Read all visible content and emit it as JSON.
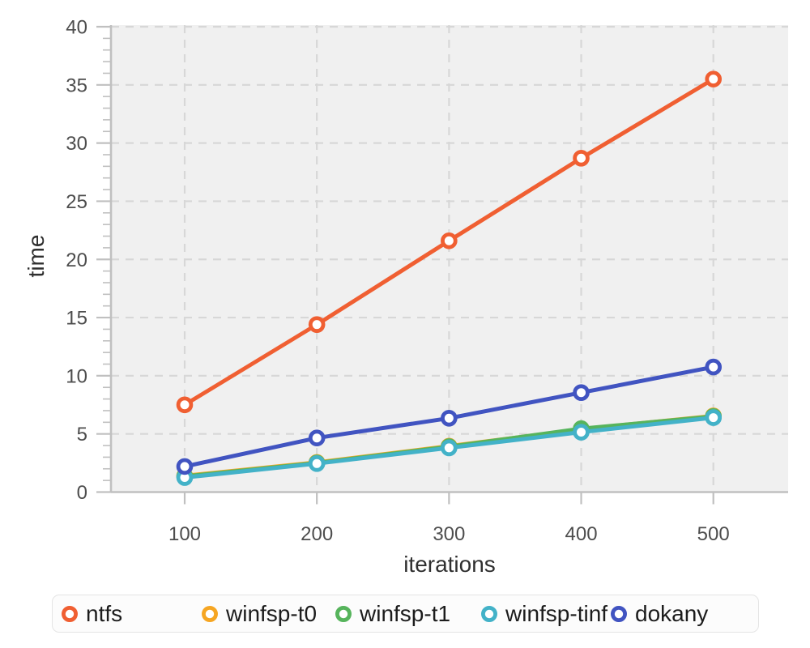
{
  "chart_data": {
    "type": "line",
    "title": "",
    "xlabel": "iterations",
    "ylabel": "time",
    "x": [
      100,
      200,
      300,
      400,
      500
    ],
    "x_ticks": [
      "100",
      "200",
      "300",
      "400",
      "500"
    ],
    "series": [
      {
        "name": "ntfs",
        "color": "#f05f32",
        "values": [
          7.5,
          14.4,
          21.6,
          28.7,
          35.5
        ]
      },
      {
        "name": "winfsp-t0",
        "color": "#f6a623",
        "values": [
          1.4,
          2.55,
          3.95,
          5.4,
          6.55
        ]
      },
      {
        "name": "winfsp-t1",
        "color": "#56b45c",
        "values": [
          1.35,
          2.5,
          3.9,
          5.45,
          6.5
        ]
      },
      {
        "name": "winfsp-tinf",
        "color": "#43b2c8",
        "values": [
          1.25,
          2.45,
          3.8,
          5.15,
          6.4
        ]
      },
      {
        "name": "dokany",
        "color": "#4154c1",
        "values": [
          2.2,
          4.65,
          6.35,
          8.55,
          10.75
        ]
      }
    ],
    "ylim": [
      0,
      40
    ],
    "y_major_step": 5,
    "y_minor_step": 1,
    "y_tick_labels": [
      "0",
      "5",
      "10",
      "15",
      "20",
      "25",
      "30",
      "35",
      "40"
    ],
    "grid": "dashed",
    "legend_position": "bottom",
    "marker": "open-circle",
    "colors": {
      "plot_background": "#f0f0f0",
      "grid_line": "#d7d7d7",
      "axis_line": "#c0c0c0",
      "tick_label": "#4d4d4d",
      "axis_title": "#2f2f2f",
      "legend_text": "#1c1c1c",
      "legend_background": "#fcfcfc",
      "legend_border": "#e4e4e4",
      "marker_fill": "#ffffff"
    }
  }
}
